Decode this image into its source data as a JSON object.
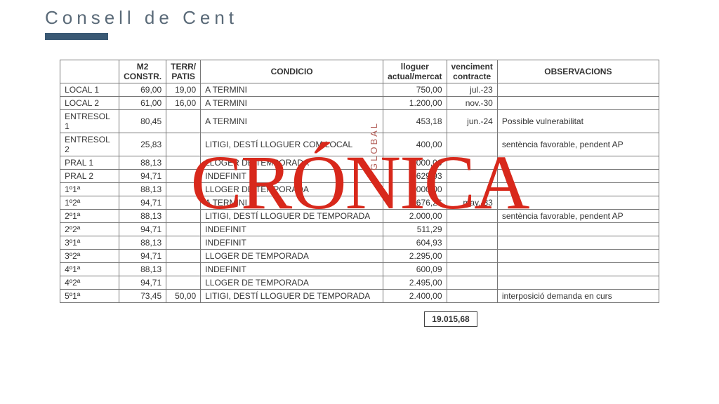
{
  "title": "Consell de Cent",
  "colors": {
    "title": "#5a6a78",
    "bar": "#3a5974",
    "border": "#777777",
    "watermark_main": "#d8281b",
    "watermark_sub": "#b35f59"
  },
  "table": {
    "headers": {
      "unit": "",
      "m2": "M2 CONSTR.",
      "terr": "TERR/ PATIS",
      "cond": "CONDICIO",
      "llog": "lloguer actual/mercat",
      "venc": "venciment contracte",
      "obs": "OBSERVACIONS"
    },
    "widths": {
      "unit": 84,
      "m2": 58,
      "terr": 46,
      "cond": 260,
      "llog": 90,
      "venc": 72,
      "obs": 230
    },
    "rows": [
      {
        "unit": "LOCAL 1",
        "m2": "69,00",
        "terr": "19,00",
        "cond": "A TERMINI",
        "llog": "750,00",
        "venc": "jul.-23",
        "obs": ""
      },
      {
        "unit": "LOCAL 2",
        "m2": "61,00",
        "terr": "16,00",
        "cond": "A TERMINI",
        "llog": "1.200,00",
        "venc": "nov.-30",
        "obs": ""
      },
      {
        "unit": "ENTRESOL 1",
        "m2": "80,45",
        "terr": "",
        "cond": "A TERMINI",
        "llog": "453,18",
        "venc": "jun.-24",
        "obs": "Possible vulnerabilitat"
      },
      {
        "unit": "ENTRESOL 2",
        "m2": "25,83",
        "terr": "",
        "cond": "LITIGI, DESTÍ LLOGUER COM LOCAL",
        "llog": "400,00",
        "venc": "",
        "obs": "sentència favorable, pendent AP"
      },
      {
        "unit": "PRAL 1",
        "m2": "88,13",
        "terr": "",
        "cond": "LLOGER DE TEMPORADA",
        "llog": "2.000,00",
        "venc": "",
        "obs": ""
      },
      {
        "unit": "PRAL 2",
        "m2": "94,71",
        "terr": "",
        "cond": "INDEFINIT",
        "llog": "629,93",
        "venc": "",
        "obs": ""
      },
      {
        "unit": "1º1ª",
        "m2": "88,13",
        "terr": "",
        "cond": "LLOGER DE TEMPORADA",
        "llog": "2.000,00",
        "venc": "",
        "obs": ""
      },
      {
        "unit": "1º2ª",
        "m2": "94,71",
        "terr": "",
        "cond": "A TERMINI",
        "llog": "676,26",
        "venc": "may.-33",
        "obs": ""
      },
      {
        "unit": "2º1ª",
        "m2": "88,13",
        "terr": "",
        "cond": "LITIGI, DESTÍ LLOGUER DE TEMPORADA",
        "llog": "2.000,00",
        "venc": "",
        "obs": "sentència favorable, pendent AP"
      },
      {
        "unit": "2º2ª",
        "m2": "94,71",
        "terr": "",
        "cond": "INDEFINIT",
        "llog": "511,29",
        "venc": "",
        "obs": ""
      },
      {
        "unit": "3º1ª",
        "m2": "88,13",
        "terr": "",
        "cond": "INDEFINIT",
        "llog": "604,93",
        "venc": "",
        "obs": ""
      },
      {
        "unit": "3º2ª",
        "m2": "94,71",
        "terr": "",
        "cond": "LLOGER DE TEMPORADA",
        "llog": "2.295,00",
        "venc": "",
        "obs": ""
      },
      {
        "unit": "4º1ª",
        "m2": "88,13",
        "terr": "",
        "cond": "INDEFINIT",
        "llog": "600,09",
        "venc": "",
        "obs": ""
      },
      {
        "unit": "4º2ª",
        "m2": "94,71",
        "terr": "",
        "cond": "LLOGER DE TEMPORADA",
        "llog": "2.495,00",
        "venc": "",
        "obs": ""
      },
      {
        "unit": "5º1ª",
        "m2": "73,45",
        "terr": "50,00",
        "cond": "LITIGI, DESTÍ LLOGUER DE TEMPORADA",
        "llog": "2.400,00",
        "venc": "",
        "obs": "interposició demanda en curs"
      }
    ],
    "total": "19.015,68"
  },
  "watermark": {
    "main": "CRÓNICA",
    "sub": "GLOBAL"
  }
}
